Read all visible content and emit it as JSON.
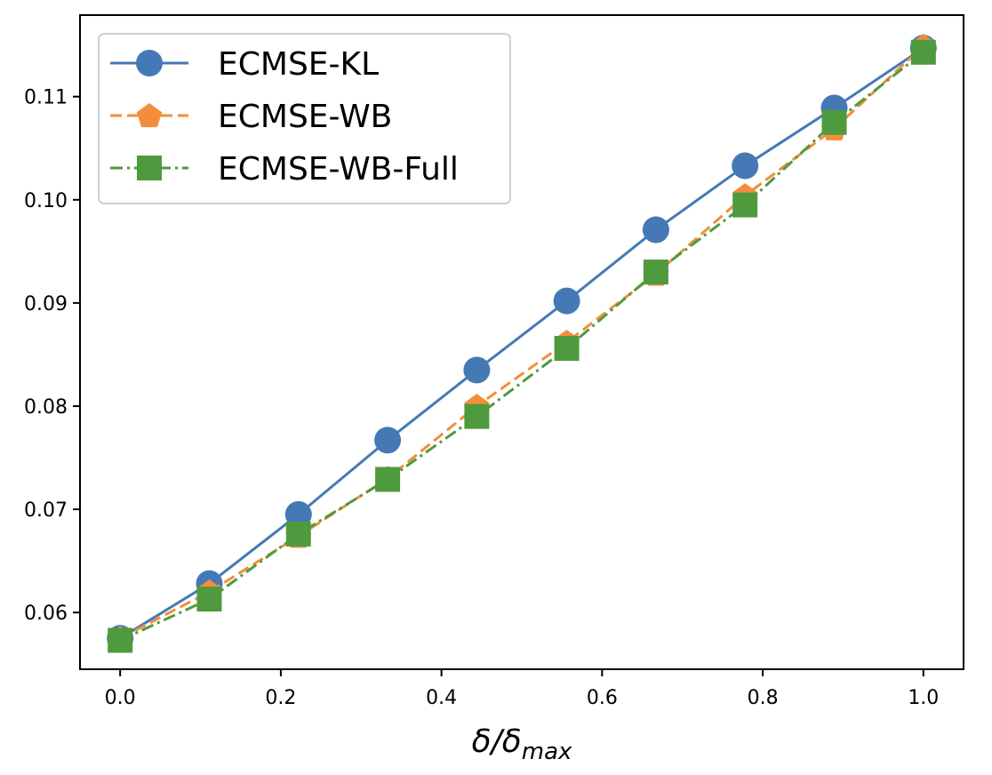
{
  "chart_data": {
    "type": "line",
    "title": "",
    "xlabel": "δ/δ",
    "xlabel_sub": "max",
    "ylabel": "",
    "xlim": [
      -0.05,
      1.05
    ],
    "ylim": [
      0.0545,
      0.1179
    ],
    "xticks": [
      "0.0",
      "0.2",
      "0.4",
      "0.6",
      "0.8",
      "1.0"
    ],
    "xtick_values": [
      0.0,
      0.2,
      0.4,
      0.6,
      0.8,
      1.0
    ],
    "yticks": [
      "0.06",
      "0.07",
      "0.08",
      "0.09",
      "0.10",
      "0.11"
    ],
    "ytick_values": [
      0.06,
      0.07,
      0.08,
      0.09,
      0.1,
      0.11
    ],
    "x": [
      0.0,
      0.111,
      0.222,
      0.333,
      0.444,
      0.556,
      0.667,
      0.778,
      0.889,
      1.0
    ],
    "legend_position": "upper-left",
    "grid": false,
    "series": [
      {
        "name": "ECMSE-KL",
        "color": "#4479b5",
        "marker": "circle",
        "linestyle": "solid",
        "values": [
          0.0575,
          0.0628,
          0.0695,
          0.0767,
          0.0835,
          0.0902,
          0.0971,
          0.1033,
          0.1089,
          0.1147
        ]
      },
      {
        "name": "ECMSE-WB",
        "color": "#f28e3a",
        "marker": "pentagon",
        "linestyle": "dashed",
        "values": [
          0.0575,
          0.062,
          0.0674,
          0.073,
          0.08,
          0.0862,
          0.0928,
          0.1004,
          0.1069,
          0.1149
        ]
      },
      {
        "name": "ECMSE-WB-Full",
        "color": "#4f9a3e",
        "marker": "square",
        "linestyle": "dashdot",
        "values": [
          0.0573,
          0.0613,
          0.0676,
          0.0729,
          0.079,
          0.0856,
          0.093,
          0.0995,
          0.1075,
          0.1143
        ]
      }
    ]
  }
}
